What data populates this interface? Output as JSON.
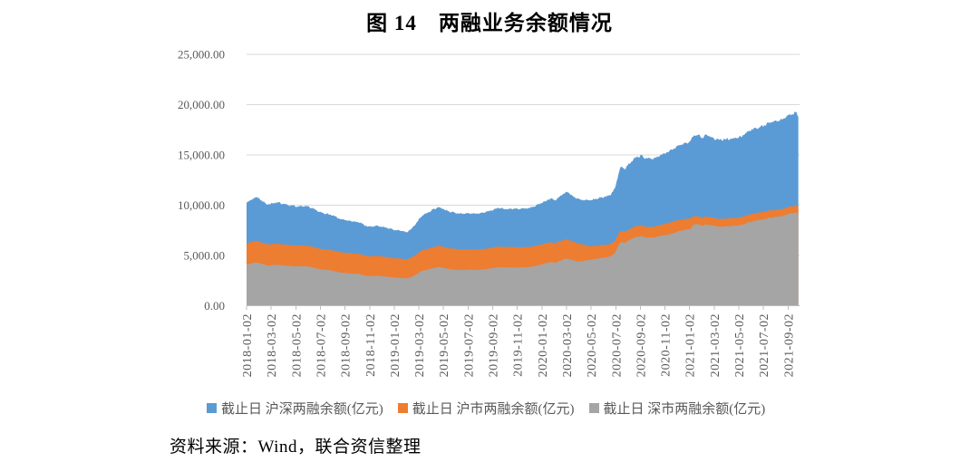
{
  "title": "图 14　两融业务余额情况",
  "source_note": "资料来源：Wind，联合资信整理",
  "chart_data": {
    "type": "area",
    "mode": "overlapping",
    "unit": "亿元",
    "gridlines": true,
    "legend_position": "bottom",
    "ylim": [
      0,
      25000
    ],
    "y_ticks": [
      {
        "value": 0,
        "label": "0.00"
      },
      {
        "value": 5000,
        "label": "5,000.00"
      },
      {
        "value": 10000,
        "label": "10,000.00"
      },
      {
        "value": 15000,
        "label": "15,000.00"
      },
      {
        "value": 20000,
        "label": "20,000.00"
      },
      {
        "value": 25000,
        "label": "25,000.00"
      }
    ],
    "x_tick_labels": [
      "2018-01-02",
      "2018-03-02",
      "2018-05-02",
      "2018-07-02",
      "2018-09-02",
      "2018-11-02",
      "2019-01-02",
      "2019-03-02",
      "2019-05-02",
      "2019-07-02",
      "2019-09-02",
      "2019-11-02",
      "2020-01-02",
      "2020-03-02",
      "2020-05-02",
      "2020-07-02",
      "2020-09-02",
      "2020-11-02",
      "2021-01-02",
      "2021-03-02",
      "2021-05-02",
      "2021-07-02",
      "2021-09-02"
    ],
    "x_tick_step_months": 2,
    "dates": [
      "2018-01-02",
      "2018-01-24",
      "2018-02-07",
      "2018-02-22",
      "2018-03-02",
      "2018-03-14",
      "2018-04-03",
      "2018-04-18",
      "2018-05-03",
      "2018-05-23",
      "2018-06-04",
      "2018-06-20",
      "2018-07-03",
      "2018-07-16",
      "2018-08-01",
      "2018-08-21",
      "2018-09-04",
      "2018-09-19",
      "2018-10-09",
      "2018-10-19",
      "2018-11-02",
      "2018-11-20",
      "2018-12-04",
      "2018-12-25",
      "2019-01-03",
      "2019-01-17",
      "2019-02-01",
      "2019-02-14",
      "2019-02-26",
      "2019-03-08",
      "2019-03-19",
      "2019-04-02",
      "2019-04-19",
      "2019-04-30",
      "2019-05-14",
      "2019-06-03",
      "2019-06-20",
      "2019-07-03",
      "2019-07-19",
      "2019-08-02",
      "2019-08-20",
      "2019-09-03",
      "2019-09-17",
      "2019-09-30",
      "2019-10-18",
      "2019-11-04",
      "2019-11-20",
      "2019-12-03",
      "2019-12-24",
      "2020-01-03",
      "2020-01-23",
      "2020-02-04",
      "2020-02-25",
      "2020-03-05",
      "2020-03-16",
      "2020-03-25",
      "2020-04-03",
      "2020-04-29",
      "2020-05-21",
      "2020-06-02",
      "2020-06-16",
      "2020-06-30",
      "2020-07-09",
      "2020-07-14",
      "2020-07-24",
      "2020-08-04",
      "2020-08-18",
      "2020-09-02",
      "2020-09-11",
      "2020-09-21",
      "2020-10-09",
      "2020-10-23",
      "2020-11-03",
      "2020-11-20",
      "2020-12-01",
      "2020-12-18",
      "2021-01-04",
      "2021-01-13",
      "2021-01-25",
      "2021-02-03",
      "2021-02-10",
      "2021-02-23",
      "2021-03-03",
      "2021-03-16",
      "2021-04-02",
      "2021-04-21",
      "2021-05-07",
      "2021-05-25",
      "2021-06-02",
      "2021-06-22",
      "2021-07-02",
      "2021-07-16",
      "2021-08-02",
      "2021-08-17",
      "2021-09-02",
      "2021-09-14",
      "2021-09-22",
      "2021-09-27"
    ],
    "series": [
      {
        "name": "截止日 沪深两融余额(亿元)",
        "color": "#5B9BD5",
        "values": [
          10300,
          10800,
          10500,
          10080,
          10150,
          10280,
          10080,
          9980,
          9870,
          9950,
          9820,
          9540,
          9230,
          9160,
          8980,
          8620,
          8520,
          8390,
          8290,
          7980,
          7870,
          7930,
          7820,
          7620,
          7520,
          7460,
          7320,
          7650,
          8250,
          8950,
          9150,
          9480,
          9830,
          9670,
          9380,
          9220,
          9120,
          9230,
          9160,
          9210,
          9370,
          9560,
          9760,
          9620,
          9670,
          9620,
          9670,
          9720,
          10060,
          10270,
          10680,
          10480,
          11180,
          11280,
          10920,
          10680,
          10580,
          10470,
          10720,
          10830,
          10960,
          11610,
          13350,
          13780,
          13620,
          14120,
          14680,
          14920,
          14720,
          14580,
          14720,
          15020,
          15170,
          15520,
          15870,
          16120,
          16370,
          17070,
          16920,
          16680,
          16970,
          16820,
          16620,
          16470,
          16570,
          16670,
          16820,
          17320,
          17470,
          17820,
          17920,
          18220,
          18370,
          18520,
          18970,
          19070,
          19320,
          18720
        ]
      },
      {
        "name": "截止日 沪市两融余额(亿元)",
        "color": "#ED7D31",
        "values": [
          6200,
          6480,
          6310,
          6080,
          6120,
          6190,
          6080,
          6020,
          5960,
          6010,
          5940,
          5790,
          5630,
          5590,
          5500,
          5320,
          5270,
          5200,
          5140,
          4990,
          4920,
          4960,
          4890,
          4780,
          4720,
          4690,
          4600,
          4790,
          5120,
          5500,
          5600,
          5780,
          5970,
          5880,
          5720,
          5640,
          5580,
          5630,
          5590,
          5610,
          5700,
          5800,
          5900,
          5820,
          5850,
          5810,
          5840,
          5860,
          6030,
          6130,
          6320,
          6220,
          6550,
          6590,
          6390,
          6250,
          6170,
          5910,
          6000,
          6040,
          6100,
          6400,
          7250,
          7450,
          7360,
          7600,
          7880,
          8000,
          7890,
          7810,
          7900,
          8050,
          8150,
          8350,
          8500,
          8600,
          8700,
          8930,
          8850,
          8730,
          8880,
          8800,
          8700,
          8620,
          8670,
          8720,
          8800,
          9040,
          9110,
          9280,
          9330,
          9470,
          9540,
          9610,
          9830,
          9880,
          10010,
          9760
        ]
      },
      {
        "name": "截止日 深市两融余额(亿元)",
        "color": "#A5A5A5",
        "values": [
          4100,
          4320,
          4190,
          4000,
          4030,
          4090,
          4000,
          3960,
          3910,
          3940,
          3880,
          3750,
          3600,
          3570,
          3480,
          3300,
          3250,
          3190,
          3150,
          2990,
          2950,
          2970,
          2930,
          2840,
          2800,
          2770,
          2720,
          2860,
          3130,
          3450,
          3550,
          3700,
          3860,
          3790,
          3660,
          3580,
          3540,
          3600,
          3570,
          3600,
          3670,
          3760,
          3860,
          3800,
          3820,
          3810,
          3830,
          3860,
          4030,
          4140,
          4360,
          4260,
          4630,
          4690,
          4530,
          4430,
          4410,
          4560,
          4720,
          4790,
          4860,
          5210,
          6100,
          6330,
          6260,
          6520,
          6800,
          6920,
          6830,
          6770,
          6820,
          6970,
          7020,
          7170,
          7370,
          7520,
          7670,
          8140,
          8070,
          7950,
          8090,
          8020,
          7920,
          7850,
          7900,
          7950,
          8020,
          8280,
          8360,
          8540,
          8590,
          8750,
          8830,
          8910,
          9140,
          9190,
          9310,
          8960
        ]
      }
    ]
  }
}
